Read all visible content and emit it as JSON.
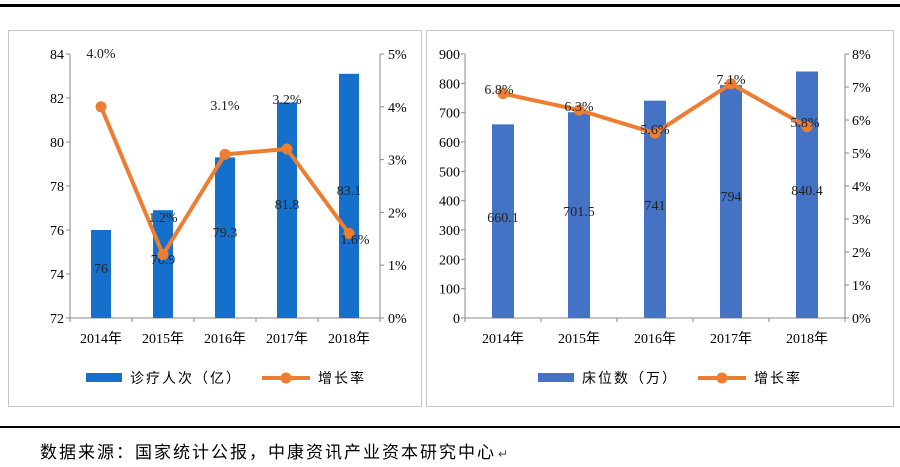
{
  "chart_data": [
    {
      "type": "bar",
      "categories": [
        "2014年",
        "2015年",
        "2016年",
        "2017年",
        "2018年"
      ],
      "series": [
        {
          "name": "诊疗人次（亿）",
          "type": "bar",
          "axis": "left",
          "values": [
            76,
            76.9,
            79.3,
            81.8,
            83.1
          ],
          "labels": [
            "76",
            "76.9",
            "79.3",
            "81.8",
            "83.1"
          ]
        },
        {
          "name": "增长率",
          "type": "line",
          "axis": "right",
          "values": [
            4.0,
            1.2,
            3.1,
            3.2,
            1.6
          ],
          "labels": [
            "4.0%",
            "1.2%",
            "3.1%",
            "3.2%",
            "1.6%"
          ]
        }
      ],
      "yleft": {
        "min": 72,
        "max": 84,
        "ticks": [
          "72",
          "74",
          "76",
          "78",
          "80",
          "82",
          "84"
        ]
      },
      "yright": {
        "min": 0,
        "max": 5,
        "ticks": [
          "0%",
          "1%",
          "2%",
          "3%",
          "4%",
          "5%"
        ]
      },
      "colors": {
        "bar": "#1570cc",
        "line": "#ed7d31"
      }
    },
    {
      "type": "bar",
      "categories": [
        "2014年",
        "2015年",
        "2016年",
        "2017年",
        "2018年"
      ],
      "series": [
        {
          "name": "床位数（万）",
          "type": "bar",
          "axis": "left",
          "values": [
            660.1,
            701.5,
            741,
            794,
            840.4
          ],
          "labels": [
            "660.1",
            "701.5",
            "741",
            "794",
            "840.4"
          ]
        },
        {
          "name": "增长率",
          "type": "line",
          "axis": "right",
          "values": [
            6.8,
            6.3,
            5.6,
            7.1,
            5.8
          ],
          "labels": [
            "6.8%",
            "6.3%",
            "5.6%",
            "7.1%",
            "5.8%"
          ]
        }
      ],
      "yleft": {
        "min": 0,
        "max": 900,
        "ticks": [
          "0",
          "100",
          "200",
          "300",
          "400",
          "500",
          "600",
          "700",
          "800",
          "900"
        ]
      },
      "yright": {
        "min": 0,
        "max": 8,
        "ticks": [
          "0%",
          "1%",
          "2%",
          "3%",
          "4%",
          "5%",
          "6%",
          "7%",
          "8%"
        ]
      },
      "colors": {
        "bar": "#4472c4",
        "line": "#ed7d31"
      }
    }
  ],
  "footer": {
    "source": "数据来源：国家统计公报，中康资讯产业资本研究中心"
  }
}
